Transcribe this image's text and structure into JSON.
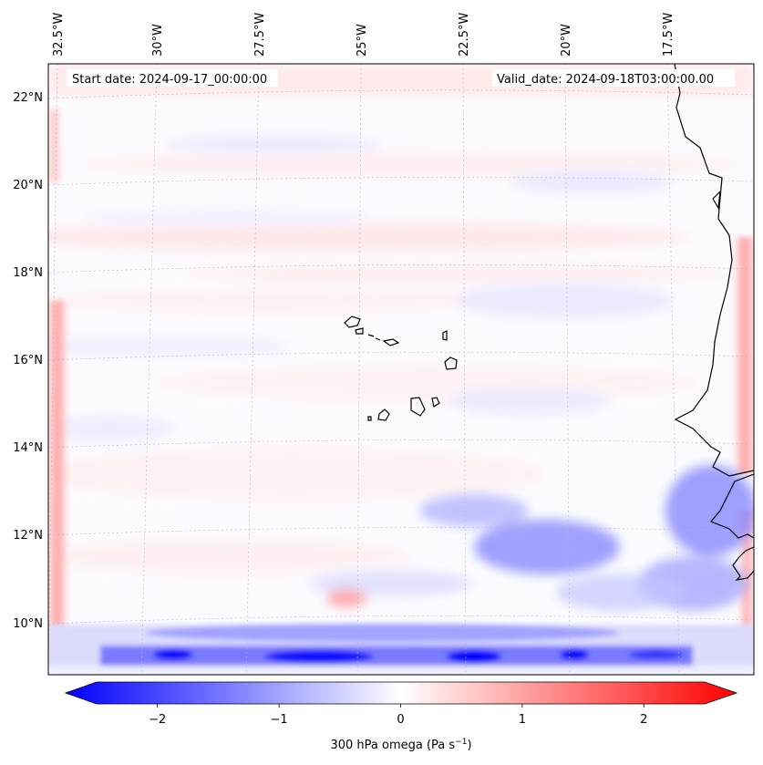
{
  "map": {
    "start_date": "Start date: 2024-09-17_00:00:00",
    "valid_date": "Valid_date: 2024-09-18T03:00:00.00",
    "lon_labels": [
      "32.5°W",
      "30°W",
      "27.5°W",
      "25°W",
      "22.5°W",
      "20°W",
      "17.5°W"
    ],
    "lat_labels": [
      "22°N",
      "20°N",
      "18°N",
      "16°N",
      "14°N",
      "12°N",
      "10°N"
    ],
    "features": [
      "Cape Verde islands",
      "West African coastline"
    ]
  },
  "colorbar": {
    "label_text": "300 hPa omega (Pa s",
    "label_exp": "−1",
    "label_close": ")",
    "ticks": [
      "−2",
      "−1",
      "0",
      "1",
      "2"
    ],
    "tick_values": [
      -2,
      -1,
      0,
      1,
      2
    ],
    "range": [
      -2.5,
      2.5
    ],
    "colors": {
      "negative": "#0000ff",
      "zero": "#ffffff",
      "positive": "#ff0000"
    }
  }
}
